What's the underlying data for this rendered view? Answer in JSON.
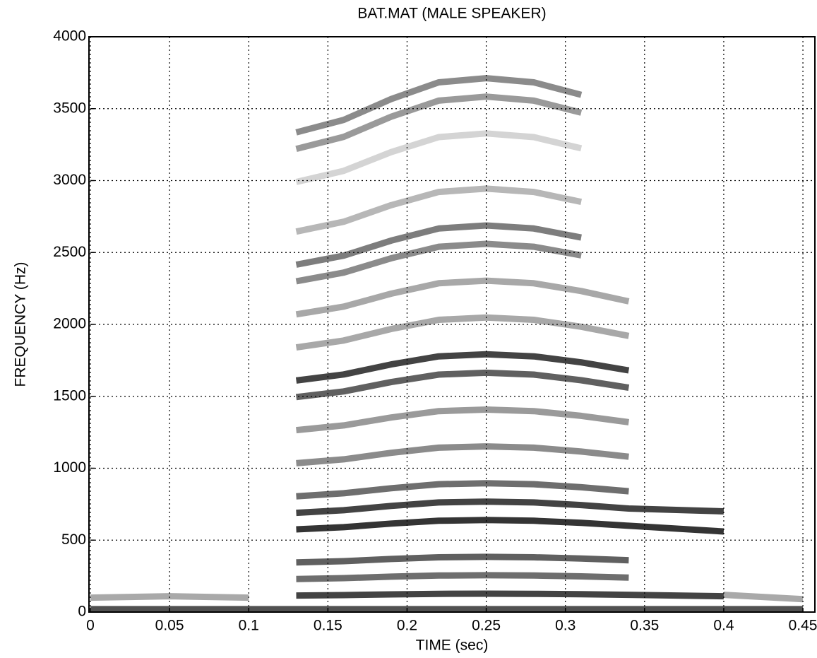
{
  "chart_data": {
    "type": "line",
    "title": "BAT.MAT  (MALE SPEAKER)",
    "x_label": "TIME (sec)",
    "y_label": "FREQUENCY (Hz)",
    "x": [
      0,
      0.05,
      0.1,
      0.13,
      0.16,
      0.19,
      0.22,
      0.25,
      0.28,
      0.31,
      0.34,
      0.4,
      0.45
    ],
    "xlim": [
      0,
      0.458
    ],
    "ylim": [
      0,
      4000
    ],
    "xticks": [
      0,
      0.05,
      0.1,
      0.15,
      0.2,
      0.25,
      0.3,
      0.35,
      0.4,
      0.45
    ],
    "yticks": [
      0,
      500,
      1000,
      1500,
      2000,
      2500,
      3000,
      3500,
      4000
    ],
    "grid": true,
    "series": [
      {
        "color": "#333333",
        "values": [
          20,
          20,
          20,
          20,
          20,
          20,
          20,
          20,
          20,
          20,
          20,
          20,
          20
        ]
      },
      {
        "color": "#9a9a9a",
        "values": [
          100,
          110,
          100,
          null,
          null,
          null,
          null,
          null,
          null,
          null,
          null,
          120,
          90
        ]
      },
      {
        "color": "#222222",
        "values": [
          null,
          null,
          null,
          115,
          118,
          123,
          127,
          128,
          127,
          124,
          120,
          110,
          null
        ]
      },
      {
        "color": "#555555",
        "values": [
          null,
          null,
          null,
          230,
          236,
          246,
          254,
          256,
          254,
          248,
          240,
          null,
          null
        ]
      },
      {
        "color": "#444444",
        "values": [
          null,
          null,
          null,
          345,
          354,
          369,
          381,
          384,
          381,
          372,
          360,
          null,
          null
        ]
      },
      {
        "color": "#111111",
        "values": [
          null,
          null,
          null,
          575,
          590,
          615,
          635,
          640,
          635,
          620,
          600,
          560,
          null
        ]
      },
      {
        "color": "#222222",
        "values": [
          null,
          null,
          null,
          690,
          708,
          738,
          762,
          768,
          762,
          744,
          720,
          700,
          null
        ]
      },
      {
        "color": "#555555",
        "values": [
          null,
          null,
          null,
          805,
          826,
          861,
          889,
          896,
          889,
          868,
          840,
          null,
          null
        ]
      },
      {
        "color": "#777777",
        "values": [
          null,
          null,
          null,
          1035,
          1062,
          1107,
          1143,
          1152,
          1143,
          1116,
          1080,
          null,
          null
        ]
      },
      {
        "color": "#888888",
        "values": [
          null,
          null,
          null,
          1265,
          1298,
          1353,
          1397,
          1408,
          1397,
          1364,
          1320,
          null,
          null
        ]
      },
      {
        "color": "#444444",
        "values": [
          null,
          null,
          null,
          1495,
          1534,
          1599,
          1651,
          1664,
          1651,
          1612,
          1560,
          null,
          null
        ]
      },
      {
        "color": "#222222",
        "values": [
          null,
          null,
          null,
          1610,
          1652,
          1722,
          1778,
          1792,
          1778,
          1736,
          1680,
          null,
          null
        ]
      },
      {
        "color": "#999999",
        "values": [
          null,
          null,
          null,
          1840,
          1888,
          1968,
          2032,
          2048,
          2032,
          1984,
          1920,
          null,
          null
        ]
      },
      {
        "color": "#999999",
        "values": [
          null,
          null,
          null,
          2070,
          2124,
          2214,
          2286,
          2304,
          2286,
          2232,
          2160,
          null,
          null
        ]
      },
      {
        "color": "#777777",
        "values": [
          null,
          null,
          null,
          2300,
          2360,
          2460,
          2540,
          2560,
          2540,
          2480,
          null,
          null,
          null
        ]
      },
      {
        "color": "#666666",
        "values": [
          null,
          null,
          null,
          2415,
          2478,
          2583,
          2667,
          2688,
          2667,
          2604,
          null,
          null,
          null
        ]
      },
      {
        "color": "#aaaaaa",
        "values": [
          null,
          null,
          null,
          2645,
          2714,
          2829,
          2921,
          2944,
          2921,
          2852,
          null,
          null,
          null
        ]
      },
      {
        "color": "#cccccc",
        "values": [
          null,
          null,
          null,
          2990,
          3068,
          3198,
          3302,
          3328,
          3302,
          3224,
          null,
          null,
          null
        ]
      },
      {
        "color": "#888888",
        "values": [
          null,
          null,
          null,
          3220,
          3304,
          3444,
          3556,
          3584,
          3556,
          3472,
          null,
          null,
          null
        ]
      },
      {
        "color": "#777777",
        "values": [
          null,
          null,
          null,
          3335,
          3422,
          3567,
          3683,
          3712,
          3683,
          3596,
          null,
          null,
          null
        ]
      }
    ]
  }
}
